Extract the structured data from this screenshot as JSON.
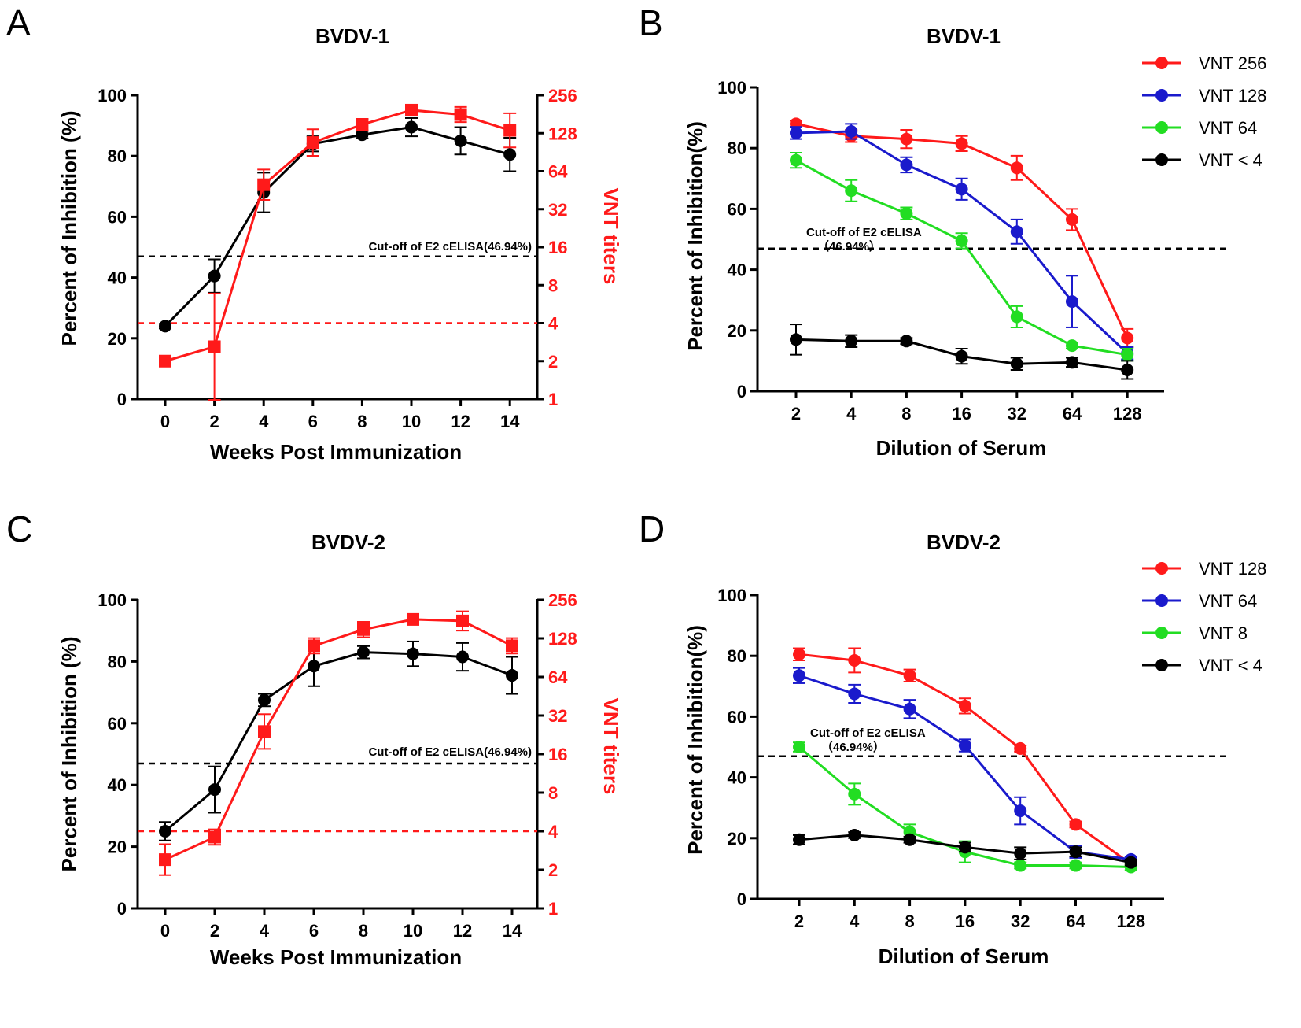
{
  "colors": {
    "red": "#ff1a1a",
    "blue": "#1a1acc",
    "green": "#22dd22",
    "black": "#000000"
  },
  "chart_data": [
    {
      "panel": "A",
      "type": "line",
      "title": "BVDV-1",
      "xlabel": "Weeks Post Immunization",
      "ylabel": "Percent of Inhibition (%)",
      "y2label": "VNT titers",
      "categories": [
        "0",
        "2",
        "4",
        "6",
        "8",
        "10",
        "12",
        "14"
      ],
      "ylim": [
        0,
        100
      ],
      "yticks": [
        "0",
        "20",
        "40",
        "60",
        "80",
        "100"
      ],
      "y2ticks": [
        "1",
        "2",
        "4",
        "8",
        "16",
        "32",
        "64",
        "128",
        "256"
      ],
      "cutoff": {
        "value": 46.94,
        "label": "Cut-off of E2 cELISA(46.94%)"
      },
      "vnt_cutoff": 4,
      "series": [
        {
          "name": "Percent of Inhibition",
          "axis": "left",
          "color": "black",
          "marker": "circle",
          "values": [
            24,
            40.5,
            68,
            84,
            87,
            89.5,
            85,
            80.5
          ],
          "errors": [
            0.8,
            5.5,
            6.5,
            2.5,
            1.2,
            3,
            4.5,
            5.5
          ]
        },
        {
          "name": "VNT titers",
          "axis": "right",
          "color": "red",
          "marker": "square",
          "values": [
            2,
            2.6,
            50,
            108,
            150,
            195,
            180,
            135
          ],
          "errors_log2": [
            0.05,
            1.4,
            0.4,
            0.35,
            0.15,
            0.1,
            0.2,
            0.45
          ]
        }
      ]
    },
    {
      "panel": "B",
      "type": "line",
      "title": "BVDV-1",
      "xlabel": "Dilution of Serum",
      "ylabel": "Percent of Inhibition(%)",
      "categories": [
        "2",
        "4",
        "8",
        "16",
        "32",
        "64",
        "128"
      ],
      "ylim": [
        0,
        100
      ],
      "yticks": [
        "0",
        "20",
        "40",
        "60",
        "80",
        "100"
      ],
      "cutoff": {
        "value": 46.94,
        "label_line1": "Cut-off of E2 cELISA",
        "label_line2": "（46.94%）"
      },
      "legend": "top-right",
      "series": [
        {
          "name": "VNT 256",
          "color": "red",
          "values": [
            88,
            84,
            83,
            81.5,
            73.5,
            56.5,
            17.5
          ],
          "errors": [
            1,
            2,
            3,
            2.5,
            4,
            3.5,
            3
          ]
        },
        {
          "name": "VNT 128",
          "color": "blue",
          "values": [
            85,
            85.5,
            74.5,
            66.5,
            52.5,
            29.5,
            12.5
          ],
          "errors": [
            2,
            2.5,
            2.5,
            3.5,
            4,
            8.5,
            2
          ]
        },
        {
          "name": "VNT 64",
          "color": "green",
          "values": [
            76,
            66,
            58.5,
            49.5,
            24.5,
            15,
            12
          ],
          "errors": [
            2.5,
            3.5,
            2,
            2.5,
            3.5,
            1,
            2
          ]
        },
        {
          "name": "VNT < 4",
          "color": "black",
          "values": [
            17,
            16.5,
            16.5,
            11.5,
            9,
            9.5,
            7
          ],
          "errors": [
            5,
            2,
            1,
            2.5,
            2,
            1.5,
            3
          ]
        }
      ]
    },
    {
      "panel": "C",
      "type": "line",
      "title": "BVDV-2",
      "xlabel": "Weeks Post Immunization",
      "ylabel": "Percent of Inhibition (%)",
      "y2label": "VNT titers",
      "categories": [
        "0",
        "2",
        "4",
        "6",
        "8",
        "10",
        "12",
        "14"
      ],
      "ylim": [
        0,
        100
      ],
      "yticks": [
        "0",
        "20",
        "40",
        "60",
        "80",
        "100"
      ],
      "y2ticks": [
        "1",
        "2",
        "4",
        "8",
        "16",
        "32",
        "64",
        "128",
        "256"
      ],
      "cutoff": {
        "value": 46.94,
        "label": "Cut-off of E2 cELISA(46.94%)"
      },
      "vnt_cutoff": 4,
      "series": [
        {
          "name": "Percent of Inhibition",
          "axis": "left",
          "color": "black",
          "marker": "circle",
          "values": [
            25,
            38.5,
            67.5,
            78.5,
            83,
            82.5,
            81.5,
            75.5
          ],
          "errors": [
            3,
            7.5,
            2,
            6.5,
            2,
            4,
            4.5,
            6
          ]
        },
        {
          "name": "VNT titers",
          "axis": "right",
          "color": "red",
          "marker": "square",
          "values": [
            2.4,
            3.6,
            24,
            112,
            150,
            180,
            175,
            112
          ],
          "errors_log2": [
            0.4,
            0.2,
            0.45,
            0.2,
            0.2,
            0.07,
            0.25,
            0.2
          ]
        }
      ]
    },
    {
      "panel": "D",
      "type": "line",
      "title": "BVDV-2",
      "xlabel": "Dilution of Serum",
      "ylabel": "Percent of Inhibition(%)",
      "categories": [
        "2",
        "4",
        "8",
        "16",
        "32",
        "64",
        "128"
      ],
      "ylim": [
        0,
        100
      ],
      "yticks": [
        "0",
        "20",
        "40",
        "60",
        "80",
        "100"
      ],
      "cutoff": {
        "value": 46.94,
        "label_line1": "Cut-off of E2 cELISA",
        "label_line2": "（46.94%）"
      },
      "legend": "top-right",
      "series": [
        {
          "name": "VNT 128",
          "color": "red",
          "values": [
            80.5,
            78.5,
            73.5,
            63.5,
            49.5,
            24.5,
            11.5
          ],
          "errors": [
            2,
            4,
            2,
            2.5,
            1,
            1,
            1
          ]
        },
        {
          "name": "VNT 64",
          "color": "blue",
          "values": [
            73.5,
            67.5,
            62.5,
            50.5,
            29,
            15.5,
            13
          ],
          "errors": [
            2.5,
            3,
            3,
            2,
            4.5,
            2,
            1
          ]
        },
        {
          "name": "VNT 8",
          "color": "green",
          "values": [
            50,
            34.5,
            22,
            15.5,
            11,
            11,
            10.5
          ],
          "errors": [
            1.5,
            3.5,
            2.5,
            3.5,
            1,
            1,
            1
          ]
        },
        {
          "name": "VNT < 4",
          "color": "black",
          "values": [
            19.5,
            21,
            19.5,
            17,
            15,
            15.5,
            12
          ],
          "errors": [
            1.5,
            1,
            1,
            1.5,
            2,
            1.5,
            1
          ]
        }
      ]
    }
  ]
}
